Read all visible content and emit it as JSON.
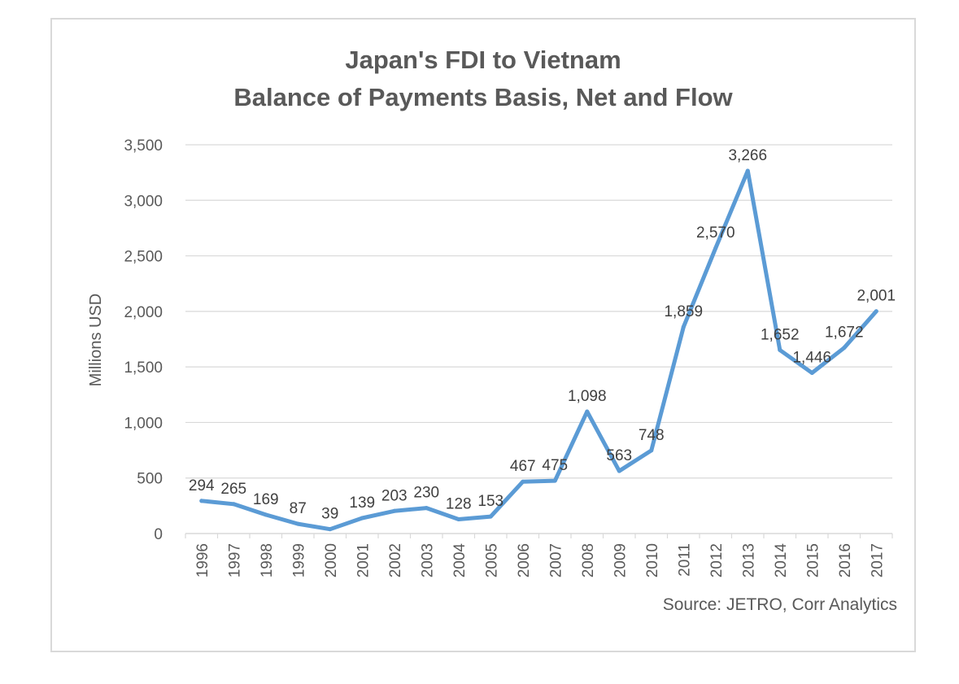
{
  "chart_data": {
    "type": "line",
    "title": "Japan's FDI to Vietnam",
    "subtitle": "Balance of Payments Basis, Net and Flow",
    "xlabel": "",
    "ylabel": "Millions USD",
    "source": "Source: JETRO, Corr Analytics",
    "ylim": [
      0,
      3500
    ],
    "yticks": [
      0,
      500,
      1000,
      1500,
      2000,
      2500,
      3000,
      3500
    ],
    "ytick_labels": [
      "0",
      "500",
      "1,000",
      "1,500",
      "2,000",
      "2,500",
      "3,000",
      "3,500"
    ],
    "grid": true,
    "legend": false,
    "categories": [
      "1996",
      "1997",
      "1998",
      "1999",
      "2000",
      "2001",
      "2002",
      "2003",
      "2004",
      "2005",
      "2006",
      "2007",
      "2008",
      "2009",
      "2010",
      "2011",
      "2012",
      "2013",
      "2014",
      "2015",
      "2016",
      "2017"
    ],
    "series": [
      {
        "values": [
          294,
          265,
          169,
          87,
          39,
          139,
          203,
          230,
          128,
          153,
          467,
          475,
          1098,
          563,
          748,
          1859,
          2570,
          3266,
          1652,
          1446,
          1672,
          2001
        ],
        "labels": [
          "294",
          "265",
          "169",
          "87",
          "39",
          "139",
          "203",
          "230",
          "128",
          "153",
          "467",
          "475",
          "1,098",
          "563",
          "748",
          "1,859",
          "2,570",
          "3,266",
          "1,652",
          "1,446",
          "1,672",
          "2,001"
        ],
        "color": "#5b9bd5"
      }
    ],
    "colors": {
      "line": "#5b9bd5",
      "grid": "#d9d9d9",
      "text": "#595959",
      "label": "#404040"
    }
  }
}
